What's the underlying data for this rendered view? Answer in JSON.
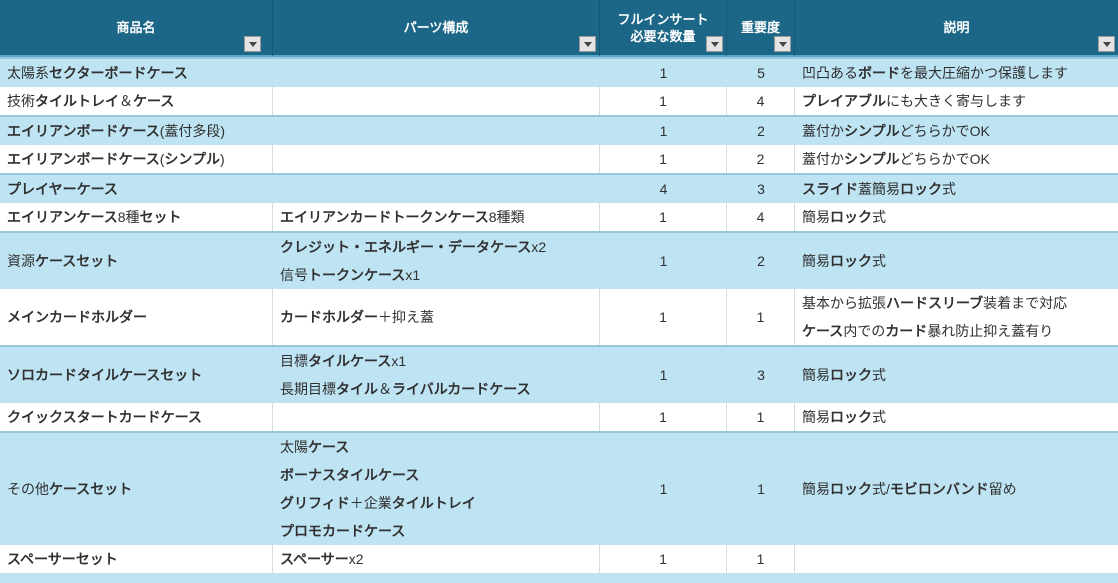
{
  "header": {
    "columns": [
      {
        "id": "product",
        "label": "商品名"
      },
      {
        "id": "parts",
        "label": "パーツ構成"
      },
      {
        "id": "quantity",
        "label_line1": "フルインサート",
        "label_line2": "必要な数量"
      },
      {
        "id": "importance",
        "label": "重要度"
      },
      {
        "id": "description",
        "label": "説明"
      }
    ],
    "filter_icon": "chevron-down"
  },
  "rows": [
    {
      "band": "blue",
      "product": "太陽系セクターボードケース",
      "parts": [],
      "qty": "1",
      "importance": "5",
      "desc": [
        "凹凸あるボードを最大圧縮かつ保護します"
      ]
    },
    {
      "band": "white",
      "product": "技術タイルトレイ＆ケース",
      "parts": [],
      "qty": "1",
      "importance": "4",
      "desc": [
        "プレイアブルにも大きく寄与します"
      ]
    },
    {
      "band": "blue",
      "product": "エイリアンボードケース(蓋付多段)",
      "parts": [],
      "qty": "1",
      "importance": "2",
      "desc": [
        "蓋付かシンプルどちらかでOK"
      ]
    },
    {
      "band": "white",
      "product": "エイリアンボードケース(シンプル)",
      "parts": [],
      "qty": "1",
      "importance": "2",
      "desc": [
        "蓋付かシンプルどちらかでOK"
      ]
    },
    {
      "band": "blue",
      "product": "プレイヤーケース",
      "parts": [],
      "qty": "4",
      "importance": "3",
      "desc": [
        "スライド蓋簡易ロック式"
      ]
    },
    {
      "band": "white",
      "product": "エイリアンケース8種セット",
      "parts": [
        "エイリアンカードトークンケース8種類"
      ],
      "qty": "1",
      "importance": "4",
      "desc": [
        "簡易ロック式"
      ]
    },
    {
      "band": "blue",
      "product": "資源ケースセット",
      "parts": [
        "クレジット・エネルギー・データケースx2",
        "信号トークンケースx1"
      ],
      "qty": "1",
      "importance": "2",
      "desc": [
        "簡易ロック式"
      ]
    },
    {
      "band": "white",
      "product": "メインカードホルダー",
      "parts": [
        "カードホルダー＋抑え蓋"
      ],
      "qty": "1",
      "importance": "1",
      "desc": [
        "基本から拡張ハードスリーブ装着まで対応",
        "ケース内でのカード暴れ防止抑え蓋有り"
      ]
    },
    {
      "band": "blue",
      "product": "ソロカードタイルケースセット",
      "parts": [
        "目標タイルケースx1",
        "長期目標タイル＆ライバルカードケース"
      ],
      "qty": "1",
      "importance": "3",
      "desc": [
        "簡易ロック式"
      ]
    },
    {
      "band": "white",
      "product": "クイックスタートカードケース",
      "parts": [],
      "qty": "1",
      "importance": "1",
      "desc": [
        "簡易ロック式"
      ]
    },
    {
      "band": "blue",
      "product": "その他ケースセット",
      "parts": [
        "太陽ケース",
        "ボーナスタイルケース",
        "グリフィド＋企業タイルトレイ",
        "プロモカードケース"
      ],
      "qty": "1",
      "importance": "1",
      "desc": [
        "簡易ロック式/モビロンバンド留め"
      ]
    },
    {
      "band": "white",
      "product": "スペーサーセット",
      "parts": [
        "スペーサーx2"
      ],
      "qty": "1",
      "importance": "1",
      "desc": []
    }
  ],
  "colors": {
    "header_bg": "#1C6788",
    "header_text": "#FFFFFF",
    "header_divider": "#15586F",
    "header_bottom": "#57A9CB",
    "band_blue": "#BEE3F2",
    "band_edge": "#98C6DA",
    "grid_line": "#D5DEE3",
    "text": "#303030",
    "filter_bg": "#E4E4E4",
    "filter_border": "#999999",
    "filter_arrow": "#444444"
  }
}
